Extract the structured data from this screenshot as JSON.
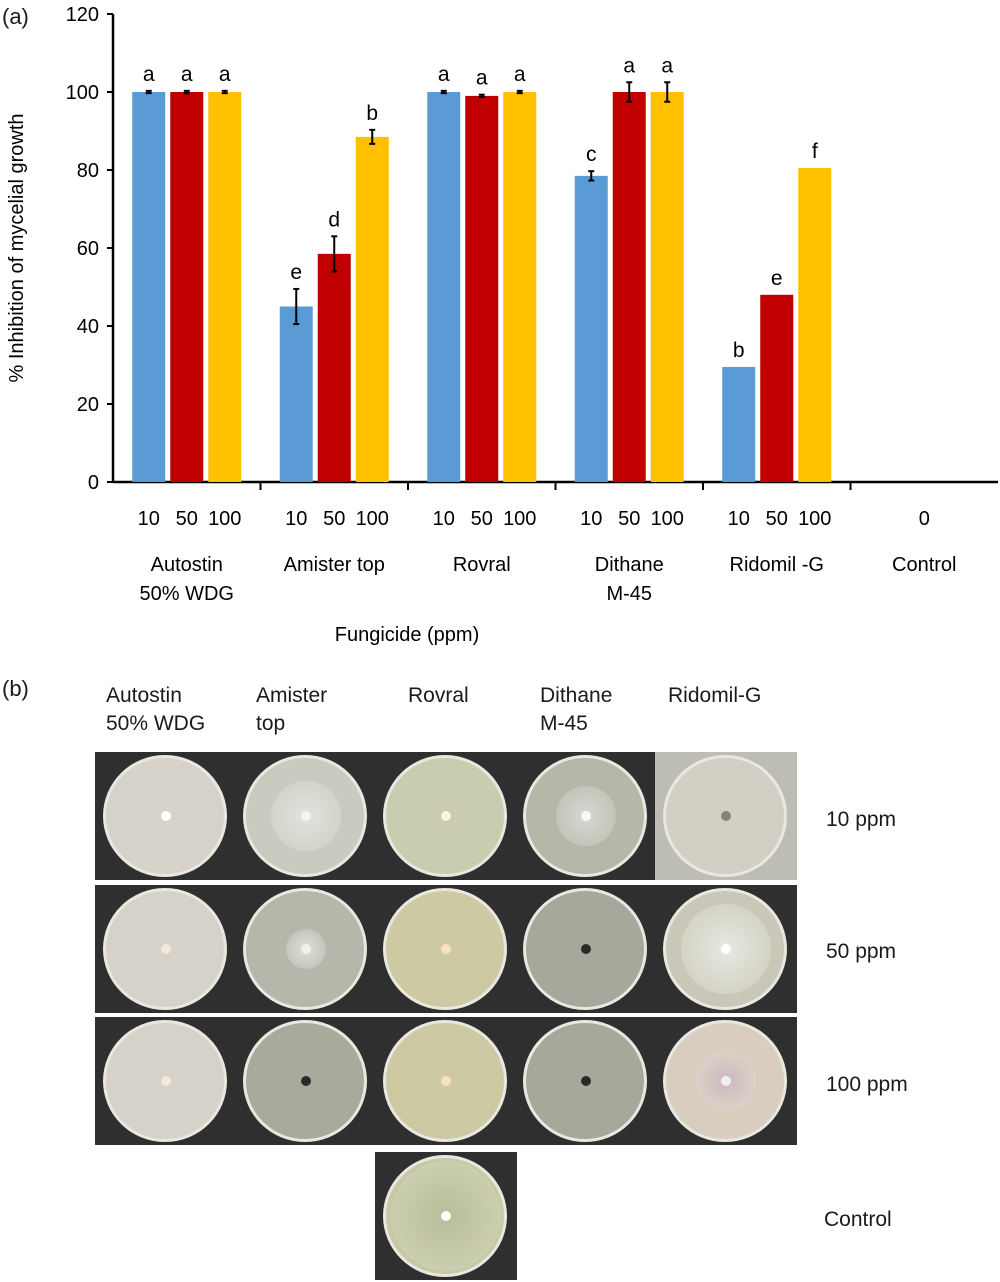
{
  "panel_a_label": "(a)",
  "panel_b_label": "(b)",
  "colors": {
    "c10": "#5b9bd5",
    "c50": "#c00000",
    "c100": "#ffc000"
  },
  "chart_data": {
    "type": "bar",
    "ylabel": "% Inhibition of mycelial growth",
    "xlabel": "Fungicide (ppm)",
    "ylim": [
      0,
      120
    ],
    "yticks": [
      0,
      20,
      40,
      60,
      80,
      100,
      120
    ],
    "grid": false,
    "legend": "none",
    "groups": [
      {
        "name": "Autostin\n50% WDG",
        "doses": [
          "10",
          "50",
          "100"
        ],
        "values": [
          100,
          100,
          100
        ],
        "errors": [
          0.3,
          0.3,
          0.3
        ],
        "letters": [
          "a",
          "a",
          "a"
        ]
      },
      {
        "name": "Amister top",
        "doses": [
          "10",
          "50",
          "100"
        ],
        "values": [
          45,
          58.5,
          88.5
        ],
        "errors": [
          4.5,
          4.5,
          1.8
        ],
        "letters": [
          "e",
          "d",
          "b"
        ]
      },
      {
        "name": "Rovral",
        "doses": [
          "10",
          "50",
          "100"
        ],
        "values": [
          100,
          99,
          100
        ],
        "errors": [
          0.3,
          0.3,
          0.3
        ],
        "letters": [
          "a",
          "a",
          "a"
        ]
      },
      {
        "name": "Dithane\nM-45",
        "doses": [
          "10",
          "50",
          "100"
        ],
        "values": [
          78.5,
          100,
          100
        ],
        "errors": [
          1.2,
          2.5,
          2.5
        ],
        "letters": [
          "c",
          "a",
          "a"
        ]
      },
      {
        "name": "Ridomil -G",
        "doses": [
          "10",
          "50",
          "100"
        ],
        "values": [
          29.5,
          48,
          80.5
        ],
        "errors": [
          0,
          0,
          0
        ],
        "letters": [
          "b",
          "e",
          "f"
        ]
      },
      {
        "name": "Control",
        "doses": [
          "0"
        ],
        "values": [
          0
        ],
        "errors": [
          0
        ],
        "letters": [
          ""
        ]
      }
    ]
  },
  "plates": {
    "columns": [
      "Autostin\n50% WDG",
      "Amister\ntop",
      "Rovral",
      "Dithane\n M-45",
      "Ridomil-G"
    ],
    "rows": [
      "10 ppm",
      "50 ppm",
      "100 ppm"
    ],
    "control_label": "Control"
  }
}
